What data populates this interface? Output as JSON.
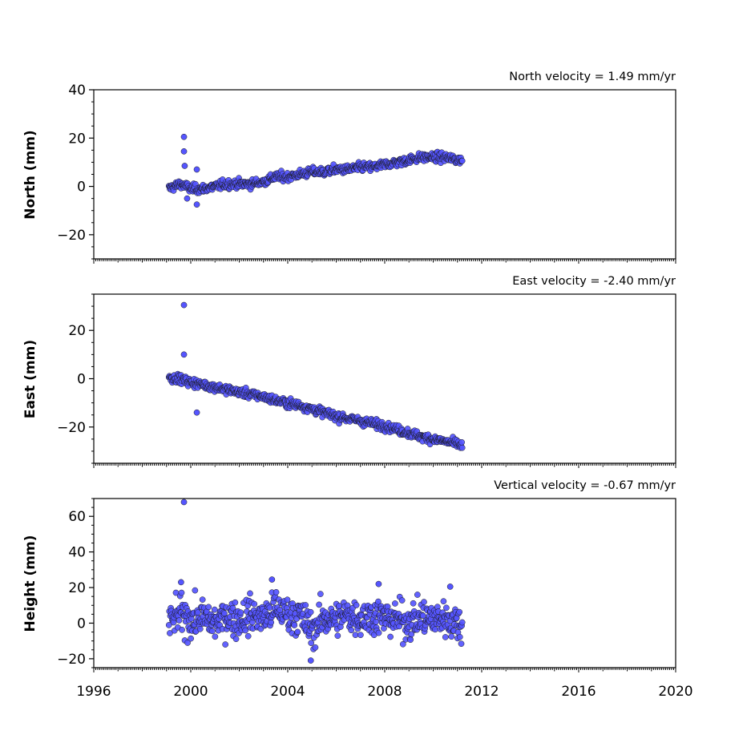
{
  "chart_data": [
    {
      "type": "scatter",
      "annotation": "North velocity = 1.49 mm/yr",
      "ylabel": "North (mm)",
      "ylim": [
        -30,
        40
      ],
      "yticks": [
        40,
        20,
        0,
        -20
      ],
      "ytick_labels": [
        "40",
        "20",
        "0",
        "−20"
      ],
      "velocity_mm_per_yr": 1.49,
      "spikes": [
        {
          "x": 1999.72,
          "y": 20.5
        },
        {
          "x": 1999.72,
          "y": 14.5
        },
        {
          "x": 1999.75,
          "y": 8.5
        },
        {
          "x": 2000.25,
          "y": 7.0
        },
        {
          "x": 2000.25,
          "y": -7.5
        },
        {
          "x": 1999.85,
          "y": -5.0
        }
      ],
      "series": [
        {
          "x": [
            1999.1,
            1999.3,
            1999.6,
            2000.0,
            2000.5,
            2001.0,
            2001.5,
            2002.0,
            2002.5,
            2003.0,
            2003.5,
            2004.0,
            2004.5,
            2005.0,
            2005.5,
            2006.0,
            2006.5,
            2007.0,
            2007.5,
            2008.0,
            2008.5,
            2009.0,
            2009.5,
            2010.0,
            2010.5,
            2011.0,
            2011.2
          ],
          "y": [
            -1,
            0,
            1,
            -1,
            -1,
            0,
            1,
            1,
            1,
            2,
            4,
            4,
            5,
            6,
            6,
            7,
            7,
            8,
            8,
            9,
            10,
            11,
            12,
            12,
            12,
            11,
            11
          ]
        }
      ]
    },
    {
      "type": "scatter",
      "annotation": "East velocity = -2.40 mm/yr",
      "ylabel": "East (mm)",
      "ylim": [
        -35,
        35
      ],
      "yticks": [
        20,
        0,
        -20
      ],
      "ytick_labels": [
        "20",
        "0",
        "−20"
      ],
      "velocity_mm_per_yr": -2.4,
      "spikes": [
        {
          "x": 1999.72,
          "y": 30.5
        },
        {
          "x": 1999.72,
          "y": 10.0
        },
        {
          "x": 2000.25,
          "y": -14.0
        }
      ],
      "series": [
        {
          "x": [
            1999.1,
            1999.5,
            2000.0,
            2000.5,
            2001.0,
            2001.5,
            2002.0,
            2002.5,
            2003.0,
            2003.5,
            2004.0,
            2004.5,
            2005.0,
            2005.5,
            2006.0,
            2006.5,
            2007.0,
            2007.5,
            2008.0,
            2008.5,
            2009.0,
            2009.5,
            2010.0,
            2010.5,
            2011.0,
            2011.2
          ],
          "y": [
            0.5,
            0,
            -1.5,
            -2.5,
            -3.5,
            -4.5,
            -5.5,
            -6.5,
            -7.5,
            -9,
            -10,
            -11,
            -12.5,
            -14,
            -15.5,
            -16.5,
            -17.5,
            -18.5,
            -19.5,
            -21,
            -22.5,
            -24,
            -25,
            -26,
            -27,
            -28
          ]
        }
      ]
    },
    {
      "type": "scatter",
      "annotation": "Vertical velocity = -0.67 mm/yr",
      "ylabel": "Height (mm)",
      "ylim": [
        -25,
        70
      ],
      "yticks": [
        60,
        40,
        20,
        0,
        -20
      ],
      "ytick_labels": [
        "60",
        "40",
        "20",
        "0",
        "−20"
      ],
      "velocity_mm_per_yr": -0.67,
      "spikes": [
        {
          "x": 1999.72,
          "y": 68.0
        },
        {
          "x": 2004.95,
          "y": -21.0
        },
        {
          "x": 2003.35,
          "y": 24.5
        },
        {
          "x": 1999.6,
          "y": 23.0
        },
        {
          "x": 2007.75,
          "y": 22.0
        },
        {
          "x": 2010.7,
          "y": 20.5
        }
      ],
      "series": [
        {
          "x": [
            1999.1,
            1999.5,
            2000.0,
            2000.5,
            2001.0,
            2001.5,
            2002.0,
            2002.5,
            2003.0,
            2003.5,
            2004.0,
            2004.5,
            2005.0,
            2005.5,
            2006.0,
            2006.5,
            2007.0,
            2007.5,
            2008.0,
            2008.5,
            2009.0,
            2009.5,
            2010.0,
            2010.5,
            2011.0,
            2011.2
          ],
          "y": [
            0,
            5,
            2,
            3,
            0,
            4,
            2,
            5,
            3,
            8,
            5,
            4,
            -4,
            3,
            2,
            5,
            3,
            4,
            3,
            2,
            1,
            3,
            2,
            3,
            0,
            -2
          ]
        }
      ]
    }
  ],
  "x_axis": {
    "xlim": [
      1996,
      2020
    ],
    "ticks": [
      1996,
      2000,
      2004,
      2008,
      2012,
      2016,
      2020
    ],
    "tick_labels": [
      "1996",
      "2000",
      "2004",
      "2008",
      "2012",
      "2016",
      "2020"
    ]
  },
  "colors": {
    "marker_fill": "#5555ff",
    "marker_edge": "#1a1a1a"
  }
}
